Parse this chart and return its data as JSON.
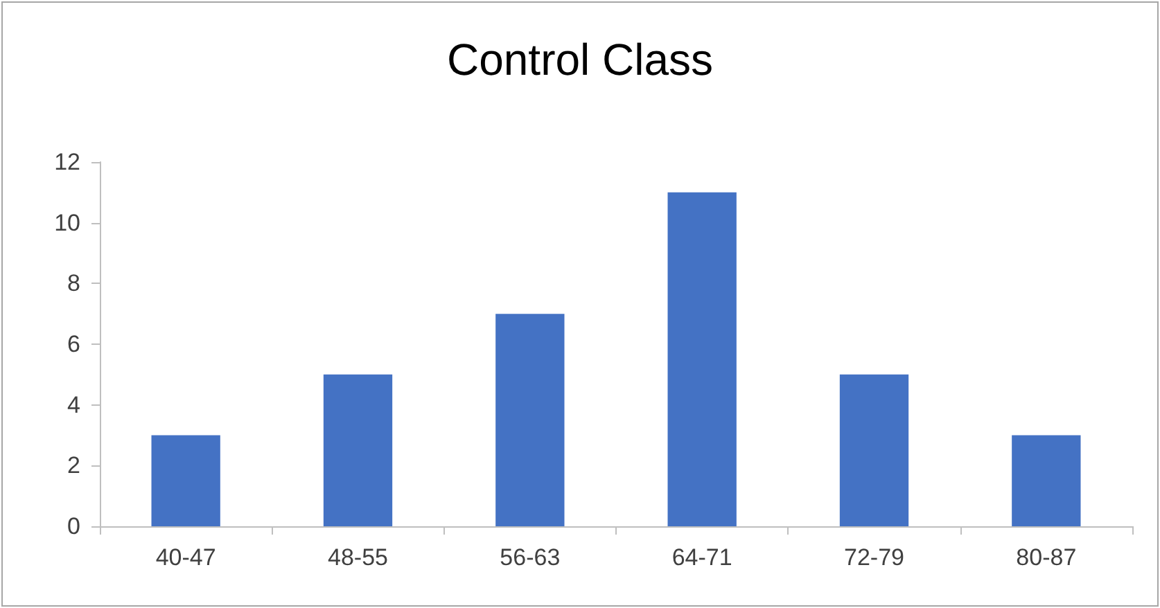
{
  "chart_data": {
    "type": "bar",
    "title": "Control Class",
    "categories": [
      "40-47",
      "48-55",
      "56-63",
      "64-71",
      "72-79",
      "80-87"
    ],
    "values": [
      3,
      5,
      7,
      11,
      5,
      3
    ],
    "color": "#4472c4",
    "ylim": [
      0,
      12
    ],
    "yticks": [
      0,
      2,
      4,
      6,
      8,
      10,
      12
    ],
    "grid": false
  }
}
